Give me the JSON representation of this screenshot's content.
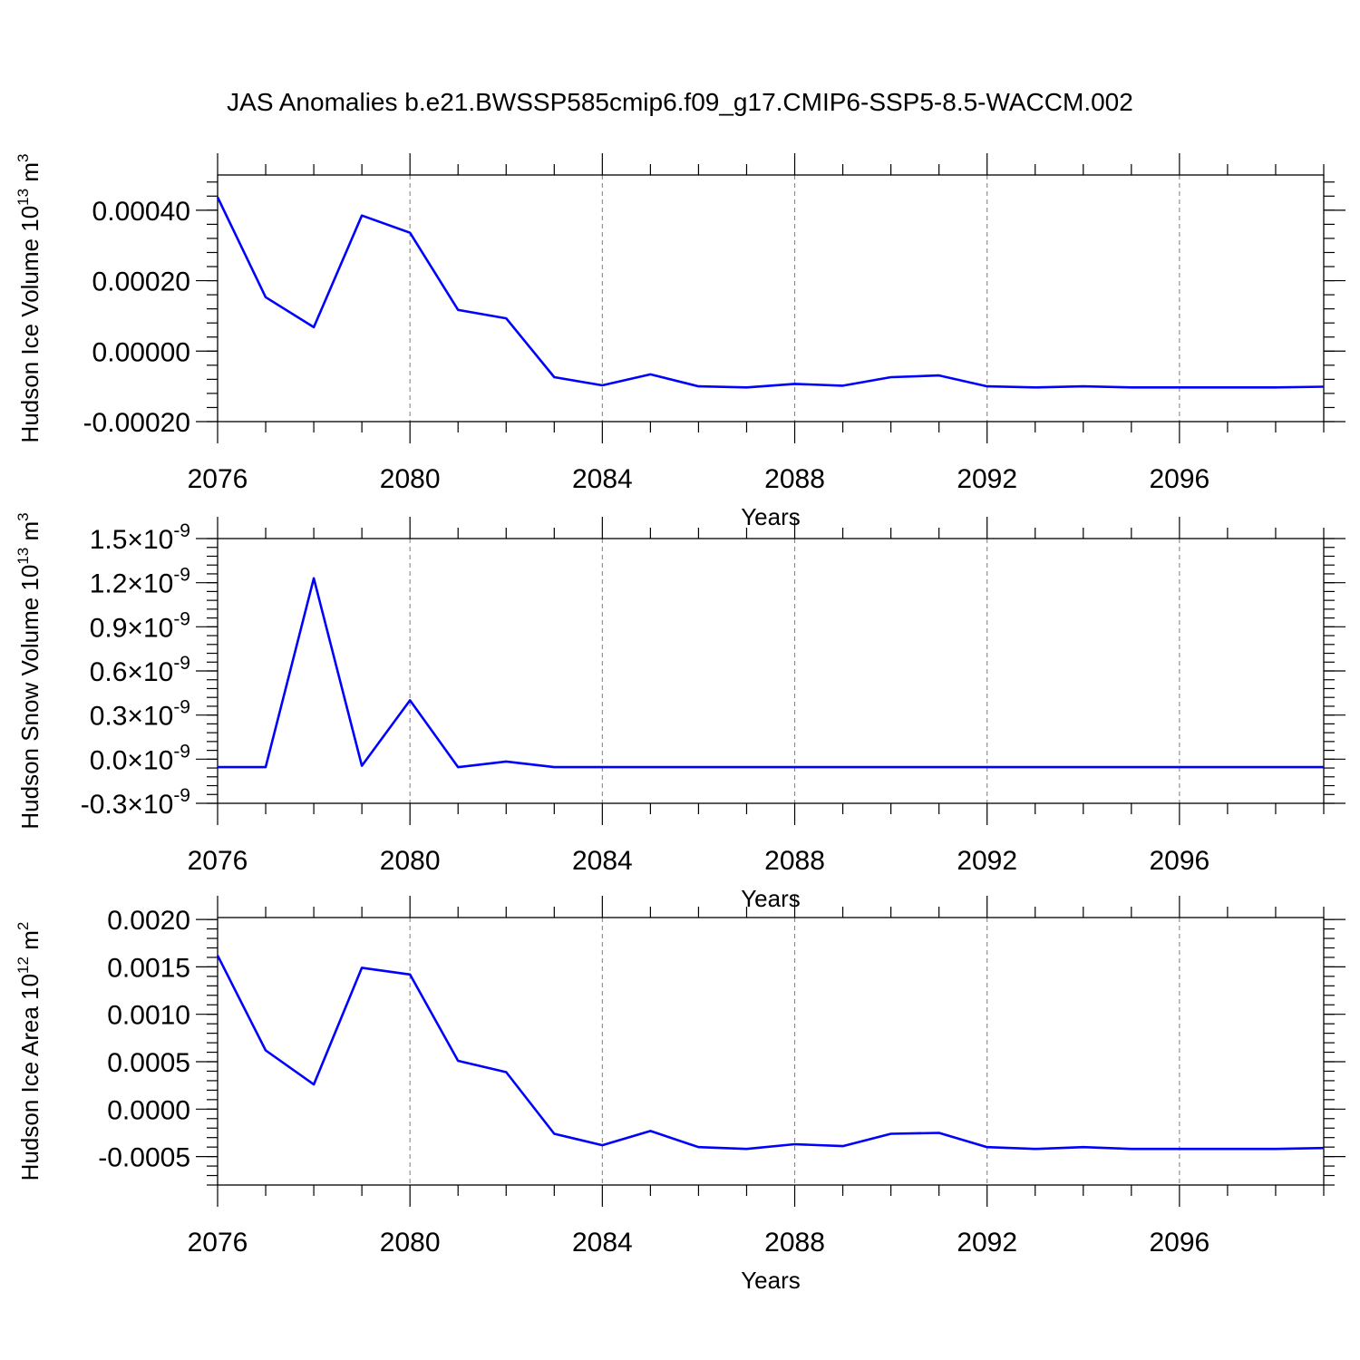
{
  "figure_title": "JAS Anomalies b.e21.BWSSP585cmip6.f09_g17.CMIP6-SSP5-8.5-WACCM.002",
  "line_color": "#0000ff",
  "chart_data": [
    {
      "type": "line",
      "xlabel": "Years",
      "ylabel": {
        "main": "Hudson Ice Volume 10",
        "exponent": "13",
        "unit": " m",
        "unit_exponent": "3"
      },
      "xlim": [
        2076,
        2099
      ],
      "ylim": [
        -0.0002,
        0.0005
      ],
      "x_ticks": [
        2076,
        2080,
        2084,
        2088,
        2092,
        2096
      ],
      "x_tick_labels": [
        "2076",
        "2080",
        "2084",
        "2088",
        "2092",
        "2096"
      ],
      "y_ticks": [
        -0.0002,
        0.0,
        0.0002,
        0.0004
      ],
      "y_tick_labels": [
        {
          "text": "-0.00020"
        },
        {
          "text": "0.00000"
        },
        {
          "text": "0.00020"
        },
        {
          "text": "0.00040"
        }
      ],
      "y_minor_step": 4e-05,
      "grid_x": [
        2080,
        2084,
        2088,
        2092,
        2096
      ],
      "series": [
        {
          "name": "Hudson Ice Volume",
          "x": [
            2076,
            2077,
            2078,
            2079,
            2080,
            2081,
            2082,
            2083,
            2084,
            2085,
            2086,
            2087,
            2088,
            2089,
            2090,
            2091,
            2092,
            2093,
            2094,
            2095,
            2096,
            2097,
            2098,
            2099
          ],
          "values": [
            0.000437,
            0.000153,
            6.8e-05,
            0.000385,
            0.000336,
            0.000117,
            9.3e-05,
            -7.4e-05,
            -9.7e-05,
            -6.6e-05,
            -0.0001,
            -0.000103,
            -9.3e-05,
            -9.8e-05,
            -7.4e-05,
            -6.9e-05,
            -0.0001,
            -0.000103,
            -0.0001,
            -0.000103,
            -0.000103,
            -0.000103,
            -0.000103,
            -0.000101
          ]
        }
      ]
    },
    {
      "type": "line",
      "xlabel": "Years",
      "ylabel": {
        "main": "Hudson Snow Volume 10",
        "exponent": "13",
        "unit": " m",
        "unit_exponent": "3"
      },
      "xlim": [
        2076,
        2099
      ],
      "ylim": [
        -3e-10,
        1.5e-09
      ],
      "x_ticks": [
        2076,
        2080,
        2084,
        2088,
        2092,
        2096
      ],
      "x_tick_labels": [
        "2076",
        "2080",
        "2084",
        "2088",
        "2092",
        "2096"
      ],
      "y_ticks": [
        -3e-10,
        0.0,
        3e-10,
        6e-10,
        9e-10,
        1.2e-09,
        1.5e-09
      ],
      "y_tick_labels": [
        {
          "text": "-0.3",
          "sci": "×10",
          "exp": "-9"
        },
        {
          "text": "0.0",
          "sci": "×10",
          "exp": "-9"
        },
        {
          "text": "0.3",
          "sci": "×10",
          "exp": "-9"
        },
        {
          "text": "0.6",
          "sci": "×10",
          "exp": "-9"
        },
        {
          "text": "0.9",
          "sci": "×10",
          "exp": "-9"
        },
        {
          "text": "1.2",
          "sci": "×10",
          "exp": "-9"
        },
        {
          "text": "1.5",
          "sci": "×10",
          "exp": "-9"
        }
      ],
      "y_minor_step": 6e-11,
      "grid_x": [
        2080,
        2084,
        2088,
        2092,
        2096
      ],
      "series": [
        {
          "name": "Hudson Snow Volume",
          "x": [
            2076,
            2077,
            2078,
            2079,
            2080,
            2081,
            2082,
            2083,
            2084,
            2085,
            2086,
            2087,
            2088,
            2089,
            2090,
            2091,
            2092,
            2093,
            2094,
            2095,
            2096,
            2097,
            2098,
            2099
          ],
          "values": [
            -5.4e-11,
            -5.4e-11,
            1.23e-09,
            -4.5e-11,
            4e-10,
            -5.4e-11,
            -1.6e-11,
            -5.4e-11,
            -5.4e-11,
            -5.4e-11,
            -5.4e-11,
            -5.4e-11,
            -5.4e-11,
            -5.4e-11,
            -5.4e-11,
            -5.4e-11,
            -5.4e-11,
            -5.4e-11,
            -5.4e-11,
            -5.4e-11,
            -5.4e-11,
            -5.4e-11,
            -5.4e-11,
            -5.4e-11
          ]
        }
      ]
    },
    {
      "type": "line",
      "xlabel": "Years",
      "ylabel": {
        "main": "Hudson Ice Area 10",
        "exponent": "12",
        "unit": " m",
        "unit_exponent": "2"
      },
      "xlim": [
        2076,
        2099
      ],
      "ylim": [
        -0.0008,
        0.00202
      ],
      "x_ticks": [
        2076,
        2080,
        2084,
        2088,
        2092,
        2096
      ],
      "x_tick_labels": [
        "2076",
        "2080",
        "2084",
        "2088",
        "2092",
        "2096"
      ],
      "y_ticks": [
        -0.0005,
        0.0,
        0.0005,
        0.001,
        0.0015,
        0.002
      ],
      "y_tick_labels": [
        {
          "text": "-0.0005"
        },
        {
          "text": "0.0000"
        },
        {
          "text": "0.0005"
        },
        {
          "text": "0.0010"
        },
        {
          "text": "0.0015"
        },
        {
          "text": "0.0020"
        }
      ],
      "y_minor_step": 0.0001,
      "grid_x": [
        2080,
        2084,
        2088,
        2092,
        2096
      ],
      "series": [
        {
          "name": "Hudson Ice Area",
          "x": [
            2076,
            2077,
            2078,
            2079,
            2080,
            2081,
            2082,
            2083,
            2084,
            2085,
            2086,
            2087,
            2088,
            2089,
            2090,
            2091,
            2092,
            2093,
            2094,
            2095,
            2096,
            2097,
            2098,
            2099
          ],
          "values": [
            0.00162,
            0.00062,
            0.00026,
            0.00149,
            0.00142,
            0.00051,
            0.00039,
            -0.00026,
            -0.00038,
            -0.00023,
            -0.0004,
            -0.00042,
            -0.00037,
            -0.00039,
            -0.00026,
            -0.00025,
            -0.0004,
            -0.00042,
            -0.0004,
            -0.00042,
            -0.00042,
            -0.00042,
            -0.00042,
            -0.00041
          ]
        }
      ]
    }
  ]
}
